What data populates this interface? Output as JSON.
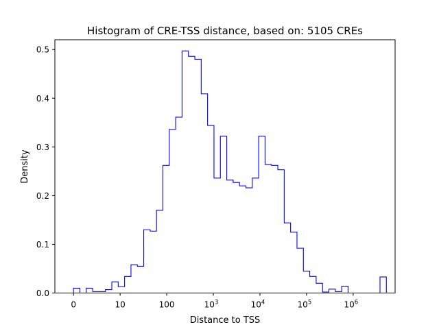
{
  "chart_data": {
    "type": "histogram",
    "title": "Histogram of CRE-TSS distance, based on: 5105 CREs",
    "xlabel": "Distance to TSS",
    "ylabel": "Density",
    "x_scale": "symlog (log10 of distance+1)",
    "xlim": [
      -0.4,
      6.9
    ],
    "ylim": [
      0,
      0.52
    ],
    "x_ticks": [
      {
        "value": 0,
        "label": "0"
      },
      {
        "value": 1,
        "label": "10"
      },
      {
        "value": 2,
        "label": "100"
      },
      {
        "value": 3,
        "label": "10",
        "sup": "3"
      },
      {
        "value": 4,
        "label": "10",
        "sup": "4"
      },
      {
        "value": 5,
        "label": "10",
        "sup": "5"
      },
      {
        "value": 6,
        "label": "10",
        "sup": "6"
      }
    ],
    "y_ticks": [
      {
        "value": 0.0,
        "label": "0.0"
      },
      {
        "value": 0.1,
        "label": "0.1"
      },
      {
        "value": 0.2,
        "label": "0.2"
      },
      {
        "value": 0.3,
        "label": "0.3"
      },
      {
        "value": 0.4,
        "label": "0.4"
      },
      {
        "value": 0.5,
        "label": "0.5"
      }
    ],
    "bin_edges": [
      0.0,
      0.137,
      0.274,
      0.411,
      0.548,
      0.685,
      0.822,
      0.959,
      1.096,
      1.233,
      1.37,
      1.507,
      1.644,
      1.781,
      1.918,
      2.055,
      2.192,
      2.329,
      2.466,
      2.603,
      2.74,
      2.877,
      3.014,
      3.151,
      3.288,
      3.425,
      3.562,
      3.699,
      3.836,
      3.973,
      4.11,
      4.247,
      4.384,
      4.521,
      4.658,
      4.795,
      4.932,
      5.069,
      5.206,
      5.343,
      5.48,
      5.617,
      5.754,
      5.891,
      6.028,
      6.165,
      6.302,
      6.439,
      6.576,
      6.713
    ],
    "values": [
      0.01,
      0.0,
      0.01,
      0.003,
      0.003,
      0.007,
      0.023,
      0.013,
      0.034,
      0.058,
      0.055,
      0.13,
      0.127,
      0.17,
      0.262,
      0.336,
      0.361,
      0.497,
      0.486,
      0.48,
      0.409,
      0.344,
      0.236,
      0.322,
      0.232,
      0.227,
      0.22,
      0.216,
      0.236,
      0.322,
      0.264,
      0.262,
      0.253,
      0.144,
      0.125,
      0.092,
      0.045,
      0.034,
      0.02,
      0.002,
      0.008,
      0.003,
      0.014,
      0.0,
      0.0,
      0.0,
      0.0,
      0.0,
      0.033
    ],
    "line_color": "#0000ff",
    "grid": false,
    "legend": "none"
  }
}
